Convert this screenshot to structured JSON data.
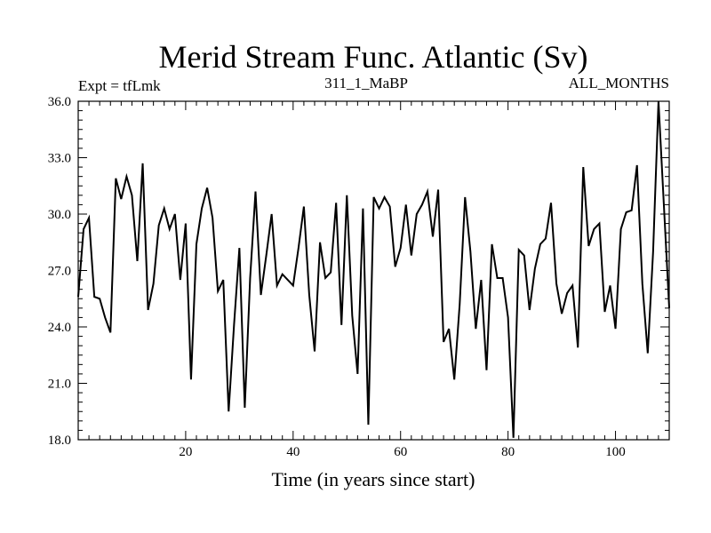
{
  "chart_data": {
    "type": "line",
    "title": "Merid Stream Func. Atlantic (Sv)",
    "subtitle_left": "Expt = tfLmk",
    "subtitle_center": "311_1_MaBP",
    "subtitle_right": "ALL_MONTHS",
    "xlabel": "Time (in years since start)",
    "ylabel": "",
    "xlim": [
      0,
      110
    ],
    "ylim": [
      18.0,
      36.0
    ],
    "x_ticks": [
      20,
      40,
      60,
      80,
      100
    ],
    "y_ticks": [
      "18.0",
      "21.0",
      "24.0",
      "27.0",
      "30.0",
      "33.0",
      "36.0"
    ],
    "series": [
      {
        "name": "Merid Stream Func. Atlantic",
        "x": [
          0,
          1,
          2,
          3,
          4,
          5,
          6,
          7,
          8,
          9,
          10,
          11,
          12,
          13,
          14,
          15,
          16,
          17,
          18,
          19,
          20,
          21,
          22,
          23,
          24,
          25,
          26,
          27,
          28,
          29,
          30,
          31,
          32,
          33,
          34,
          35,
          36,
          37,
          38,
          39,
          40,
          41,
          42,
          43,
          44,
          45,
          46,
          47,
          48,
          49,
          50,
          51,
          52,
          53,
          54,
          55,
          56,
          57,
          58,
          59,
          60,
          61,
          62,
          63,
          64,
          65,
          66,
          67,
          68,
          69,
          70,
          71,
          72,
          73,
          74,
          75,
          76,
          77,
          78,
          79,
          80,
          81,
          82,
          83,
          84,
          85,
          86,
          87,
          88,
          89,
          90,
          91,
          92,
          93,
          94,
          95,
          96,
          97,
          98,
          99,
          100,
          101,
          102,
          103,
          104,
          105,
          106,
          107,
          108,
          109,
          110
        ],
        "values": [
          25.6,
          29.2,
          29.8,
          25.6,
          25.5,
          24.5,
          23.7,
          31.9,
          30.8,
          32.0,
          31.0,
          27.5,
          32.7,
          24.9,
          26.3,
          29.4,
          30.3,
          29.2,
          30.0,
          26.5,
          29.5,
          21.2,
          28.4,
          30.3,
          31.4,
          29.8,
          25.9,
          26.5,
          19.5,
          24.1,
          28.2,
          19.7,
          26.6,
          31.2,
          25.7,
          27.8,
          30.0,
          26.2,
          26.8,
          26.5,
          26.2,
          28.2,
          30.4,
          25.7,
          22.7,
          28.5,
          26.6,
          26.9,
          30.6,
          24.1,
          31.0,
          24.6,
          21.5,
          30.3,
          18.8,
          30.9,
          30.3,
          30.9,
          30.4,
          27.2,
          28.2,
          30.5,
          27.8,
          30.0,
          30.5,
          31.2,
          28.8,
          31.3,
          23.2,
          23.9,
          21.2,
          25.2,
          30.9,
          28.0,
          23.9,
          26.5,
          21.7,
          28.4,
          26.6,
          26.6,
          24.5,
          18.1,
          28.1,
          27.8,
          24.9,
          27.1,
          28.4,
          28.7,
          30.6,
          26.3,
          24.7,
          25.8,
          26.2,
          22.9,
          32.5,
          28.3,
          29.2,
          29.5,
          24.8,
          26.2,
          23.9,
          29.2,
          30.1,
          30.2,
          32.6,
          26.3,
          22.6,
          28.0,
          36.0,
          30.5,
          25.0
        ]
      }
    ],
    "line_color": "#000000"
  }
}
